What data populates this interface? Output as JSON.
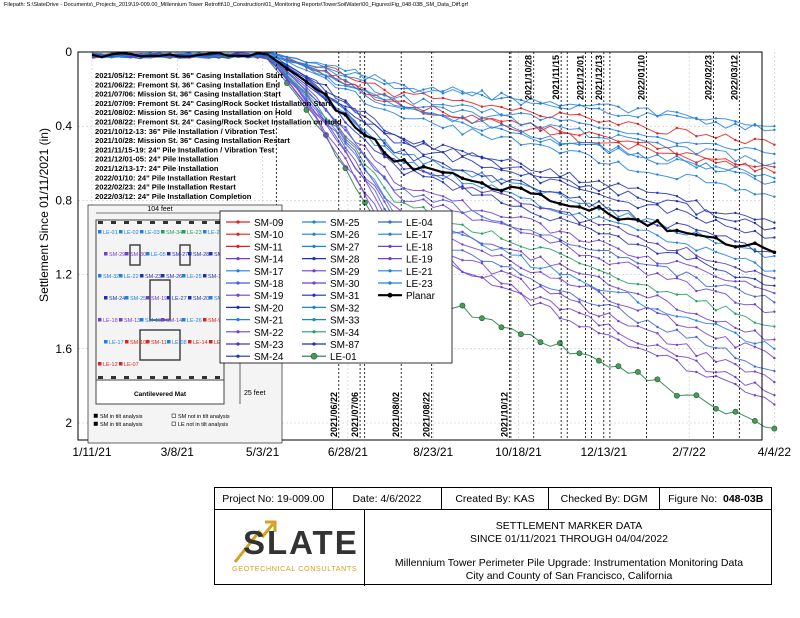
{
  "filepath": "Filepath: S:\\SlateDrive - Documents\\_Projects_2019\\19-009.00_Millennium Tower Retrofit\\10_Construction\\01_Monitoring Reports\\TowerSoilWater\\00_Figures\\Fig_048-03B_SM_Data_Diff.grf",
  "chart_data": {
    "type": "line",
    "ylabel": "Settlement Since 01/11/2021 (in)",
    "xlabel": "",
    "x_ticks": [
      "1/11/21",
      "3/8/21",
      "5/3/21",
      "6/28/21",
      "8/23/21",
      "10/18/21",
      "12/13/21",
      "2/7/22",
      "4/4/22"
    ],
    "y_ticks": [
      "0",
      "0.4",
      "0.8",
      "1.2",
      "1.6",
      "2"
    ],
    "ylim": [
      0,
      2.05
    ],
    "y_inverted": true,
    "events": [
      "2021/05/12: Fremont St. 36\" Casing Installation Start",
      "2021/06/22: Fremont St. 36\" Casing Installation End",
      "2021/07/06: Mission St. 36\" Casing Installation Start",
      "2021/07/09: Fremont St. 24\" Casing/Rock Socket Installation Start",
      "2021/08/02: Mission St. 36\" Casing Installation on Hold",
      "2021/08/22: Fremont St. 24\" Casing/Rock Socket Installation on Hold",
      "2021/10/12-13: 36\" Pile Installation / Vibration Test",
      "2021/10/28: Mission St. 36\" Casing Installation Restart",
      "2021/11/15-19: 24\" Pile Installation / Vibration Test",
      "2021/12/01-05: 24\" Pile Installation",
      "2021/12/13-17: 24\" Pile Installation",
      "2022/01/10: 24\" Pile Installation Restart",
      "2022/02/23: 24\" Pile Installation Restart",
      "2022/03/12: 24\" Pile Installation Completion"
    ],
    "bottom_date_labels": [
      "2021/05/12",
      "2021/06/22",
      "2021/07/06",
      "2021/08/02",
      "2021/08/22",
      "2021/10/12"
    ],
    "top_date_labels": [
      "2021/10/28",
      "2021/11/15",
      "2021/12/01",
      "2021/12/13",
      "2022/01/10",
      "2022/02/23",
      "2022/03/12"
    ],
    "legend": [
      "SM-09",
      "SM-10",
      "SM-11",
      "SM-14",
      "SM-17",
      "SM-18",
      "SM-19",
      "SM-20",
      "SM-21",
      "SM-22",
      "SM-23",
      "SM-24",
      "SM-25",
      "SM-26",
      "SM-27",
      "SM-28",
      "SM-29",
      "SM-30",
      "SM-31",
      "SM-32",
      "SM-33",
      "SM-34",
      "SM-87",
      "LE-01",
      "LE-04",
      "LE-17",
      "LE-18",
      "LE-19",
      "LE-21",
      "LE-23",
      "Planar"
    ],
    "series": [
      {
        "name": "SM-09",
        "color": "#e02020",
        "end": 0.65,
        "shape": "gentle"
      },
      {
        "name": "SM-10",
        "color": "#e02020",
        "end": 0.5,
        "shape": "gentle"
      },
      {
        "name": "SM-11",
        "color": "#e02020",
        "end": 0.62,
        "shape": "gentle"
      },
      {
        "name": "SM-14",
        "color": "#7040d0",
        "end": 1.3,
        "shape": "steep"
      },
      {
        "name": "SM-17",
        "color": "#2080e0",
        "end": 0.42,
        "shape": "gentle"
      },
      {
        "name": "SM-18",
        "color": "#4060d8",
        "end": 1.72,
        "shape": "steep"
      },
      {
        "name": "SM-19",
        "color": "#7040d0",
        "end": 1.78,
        "shape": "steep"
      },
      {
        "name": "SM-20",
        "color": "#2030b0",
        "end": 0.95,
        "shape": "medium"
      },
      {
        "name": "SM-21",
        "color": "#2080e0",
        "end": 1.18,
        "shape": "medium"
      },
      {
        "name": "SM-22",
        "color": "#7040d0",
        "end": 1.65,
        "shape": "steep"
      },
      {
        "name": "SM-23",
        "color": "#5030c0",
        "end": 1.22,
        "shape": "medium"
      },
      {
        "name": "SM-24",
        "color": "#2030b0",
        "end": 0.92,
        "shape": "medium"
      },
      {
        "name": "SM-25",
        "color": "#2080e0",
        "end": 0.7,
        "shape": "gentle"
      },
      {
        "name": "SM-26",
        "color": "#2080e0",
        "end": 1.1,
        "shape": "medium"
      },
      {
        "name": "SM-27",
        "color": "#2080e0",
        "end": 0.55,
        "shape": "gentle"
      },
      {
        "name": "SM-28",
        "color": "#2030b0",
        "end": 1.0,
        "shape": "medium"
      },
      {
        "name": "SM-29",
        "color": "#7040d0",
        "end": 1.4,
        "shape": "steep"
      },
      {
        "name": "SM-30",
        "color": "#7040d0",
        "end": 1.55,
        "shape": "steep"
      },
      {
        "name": "SM-31",
        "color": "#2030b0",
        "end": 1.08,
        "shape": "medium"
      },
      {
        "name": "SM-32",
        "color": "#2080e0",
        "end": 0.68,
        "shape": "gentle"
      },
      {
        "name": "SM-33",
        "color": "#2080e0",
        "end": 1.6,
        "shape": "steep"
      },
      {
        "name": "SM-34",
        "color": "#20a060",
        "end": 1.48,
        "shape": "steep"
      },
      {
        "name": "SM-87",
        "color": "#2030b0",
        "end": 1.26,
        "shape": "medium"
      },
      {
        "name": "LE-01",
        "color": "#1a7a3a",
        "end": 2.03,
        "shape": "le01"
      },
      {
        "name": "LE-04",
        "color": "#4060d8",
        "end": 1.35,
        "shape": "steep"
      },
      {
        "name": "LE-17",
        "color": "#2080e0",
        "end": 0.6,
        "shape": "gentle"
      },
      {
        "name": "LE-18",
        "color": "#7040d0",
        "end": 1.85,
        "shape": "steep"
      },
      {
        "name": "LE-19",
        "color": "#7040d0",
        "end": 1.9,
        "shape": "steep"
      },
      {
        "name": "LE-21",
        "color": "#2080e0",
        "end": 0.78,
        "shape": "gentle"
      },
      {
        "name": "LE-23",
        "color": "#2080e0",
        "end": 0.4,
        "shape": "gentle"
      },
      {
        "name": "Planar",
        "color": "#000000",
        "end": 1.08,
        "shape": "planar"
      }
    ],
    "inset": {
      "width_label": "104 feet",
      "height_label": "152 feet",
      "mat_height_label": "25 feet",
      "mat_label": "Cantilevered Mat",
      "markers": [
        {
          "text": "LE-01",
          "c": "#2080e0"
        },
        {
          "text": "LE-02",
          "c": "#2080e0"
        },
        {
          "text": "LE-03",
          "c": "#2080e0"
        },
        {
          "text": "SM-34",
          "c": "#20a060"
        },
        {
          "text": "LE-23",
          "c": "#20a060"
        },
        {
          "text": "LE-24",
          "c": "#2080e0"
        },
        {
          "text": "SM-29",
          "c": "#7040d0"
        },
        {
          "text": "SM-30",
          "c": "#7040d0"
        },
        {
          "text": "LE-05",
          "c": "#2080e0"
        },
        {
          "text": "SM-27",
          "c": "#2030b0"
        },
        {
          "text": "SM-28",
          "c": "#2030b0"
        },
        {
          "text": "SM-31",
          "c": "#2030b0"
        },
        {
          "text": "SM-32",
          "c": "#2080e0"
        },
        {
          "text": "LE-22",
          "c": "#2080e0"
        },
        {
          "text": "SM-23",
          "c": "#2030b0"
        },
        {
          "text": "SM-26",
          "c": "#2030b0"
        },
        {
          "text": "LE-25",
          "c": "#2080e0"
        },
        {
          "text": "SM-18",
          "c": "#2030b0"
        },
        {
          "text": "SM-24",
          "c": "#2030b0"
        },
        {
          "text": "SM-25",
          "c": "#2080e0"
        },
        {
          "text": "SM-19",
          "c": "#7040d0"
        },
        {
          "text": "LE-27",
          "c": "#2030b0"
        },
        {
          "text": "SM-20",
          "c": "#2030b0"
        },
        {
          "text": "SM-21",
          "c": "#2080e0"
        },
        {
          "text": "LE-18",
          "c": "#7040d0"
        },
        {
          "text": "SM-13",
          "c": "#7040d0"
        },
        {
          "text": "SM-15",
          "c": "#2080e0"
        },
        {
          "text": "SM-14",
          "c": "#7040d0"
        },
        {
          "text": "LE-26",
          "c": "#2080e0"
        },
        {
          "text": "SM-9",
          "c": "#e02020"
        },
        {
          "text": "LE-17",
          "c": "#2080e0"
        },
        {
          "text": "SM-10",
          "c": "#e02020"
        },
        {
          "text": "SM-11",
          "c": "#e02020"
        },
        {
          "text": "LE-08",
          "c": "#2080e0"
        },
        {
          "text": "LE-14",
          "c": "#e02020"
        },
        {
          "text": "LE-16",
          "c": "#e02020"
        },
        {
          "text": "LE-12",
          "c": "#e02020"
        },
        {
          "text": "LE-07",
          "c": "#e02020"
        }
      ],
      "key": [
        "SM in tilt analysis",
        "SM not in tilt analysis",
        "SM in tilt analysis",
        "LE not in tilt analysis"
      ]
    }
  },
  "title_block": {
    "project_no": "Project No: 19-009.00",
    "date": "Date:  4/6/2022",
    "created_by": "Created By:  KAS",
    "checked_by": "Checked By:  DGM",
    "figure_label": "Figure No:",
    "figure_no": "048-03B",
    "title_line1": "SETTLEMENT MARKER DATA",
    "title_line2": "SINCE 01/11/2021 THROUGH 04/04/2022",
    "project_line1": "Millennium Tower Perimeter Pile Upgrade: Instrumentation Monitoring Data",
    "project_line2": "City and County of San Francisco, California",
    "logo_name": "SLATE",
    "logo_sub": "GEOTECHNICAL CONSULTANTS",
    "logo_color": "#d8a020"
  }
}
